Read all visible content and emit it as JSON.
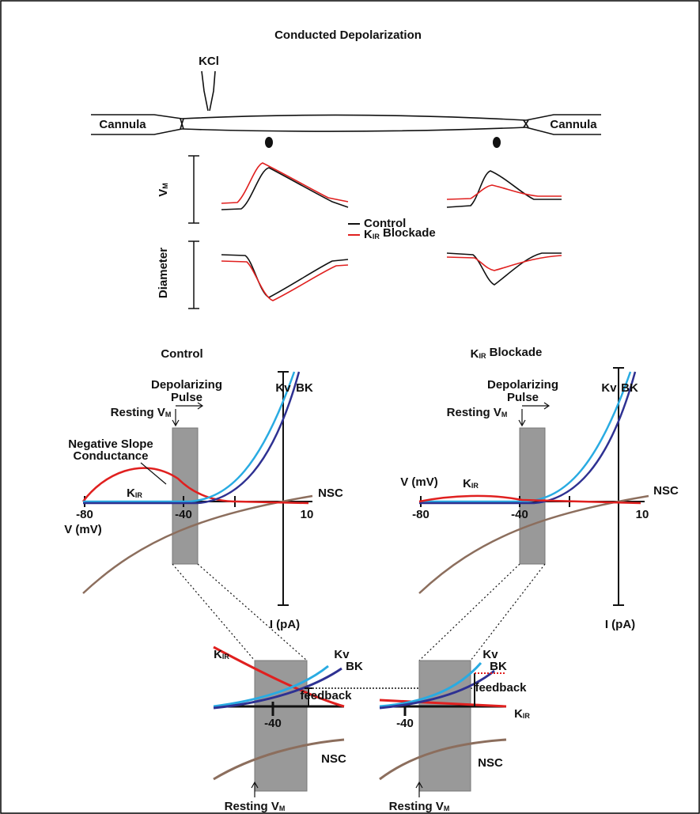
{
  "title": "Conducted Depolarization",
  "top": {
    "kcl": "KCl",
    "cannula_left": "Cannula",
    "cannula_right": "Cannula",
    "vm_label": {
      "main": "V",
      "sub": "M"
    },
    "diameter_label": "Diameter",
    "legend": [
      {
        "main": "Control"
      },
      {
        "main": "K",
        "sub": "IR",
        "rest": " Blockade"
      }
    ]
  },
  "panels": [
    {
      "title": {
        "main": "Control"
      },
      "depolarizing_pulse": [
        "Depolarizing",
        "Pulse"
      ],
      "resting": {
        "main": "Resting V",
        "sub": "M"
      },
      "negative_slope": [
        "Negative Slope",
        "Conductance"
      ],
      "kv": "Kv",
      "bk": "BK",
      "kir": {
        "main": "K",
        "sub": "IR"
      },
      "nsc": "NSC",
      "ticks": [
        "-80",
        "-40",
        "10"
      ],
      "x_label": "V (mV)",
      "y_label": "I (pA)"
    },
    {
      "title": {
        "main": "K",
        "sub": "IR",
        "rest": " Blockade"
      },
      "depolarizing_pulse": [
        "Depolarizing",
        "Pulse"
      ],
      "resting": {
        "main": "Resting V",
        "sub": "M"
      },
      "kv": "Kv",
      "bk": "BK",
      "kir": {
        "main": "K",
        "sub": "IR"
      },
      "nsc": "NSC",
      "ticks": [
        "-80",
        "-40",
        "10"
      ],
      "x_label": "V (mV)",
      "y_label": "I (pA)"
    }
  ],
  "zooms": [
    {
      "kir": {
        "main": "K",
        "sub": "IR"
      },
      "kv": "Kv",
      "bk": "BK",
      "tick": "-40",
      "feedback": "feedback",
      "nsc": "NSC",
      "resting": {
        "main": "Resting V",
        "sub": "M"
      }
    },
    {
      "kir": {
        "main": "K",
        "sub": "IR"
      },
      "kv": "Kv",
      "bk": "BK",
      "tick": "-40",
      "feedback": "feedback",
      "nsc": "NSC",
      "resting": {
        "main": "Resting V",
        "sub": "M"
      }
    }
  ]
}
